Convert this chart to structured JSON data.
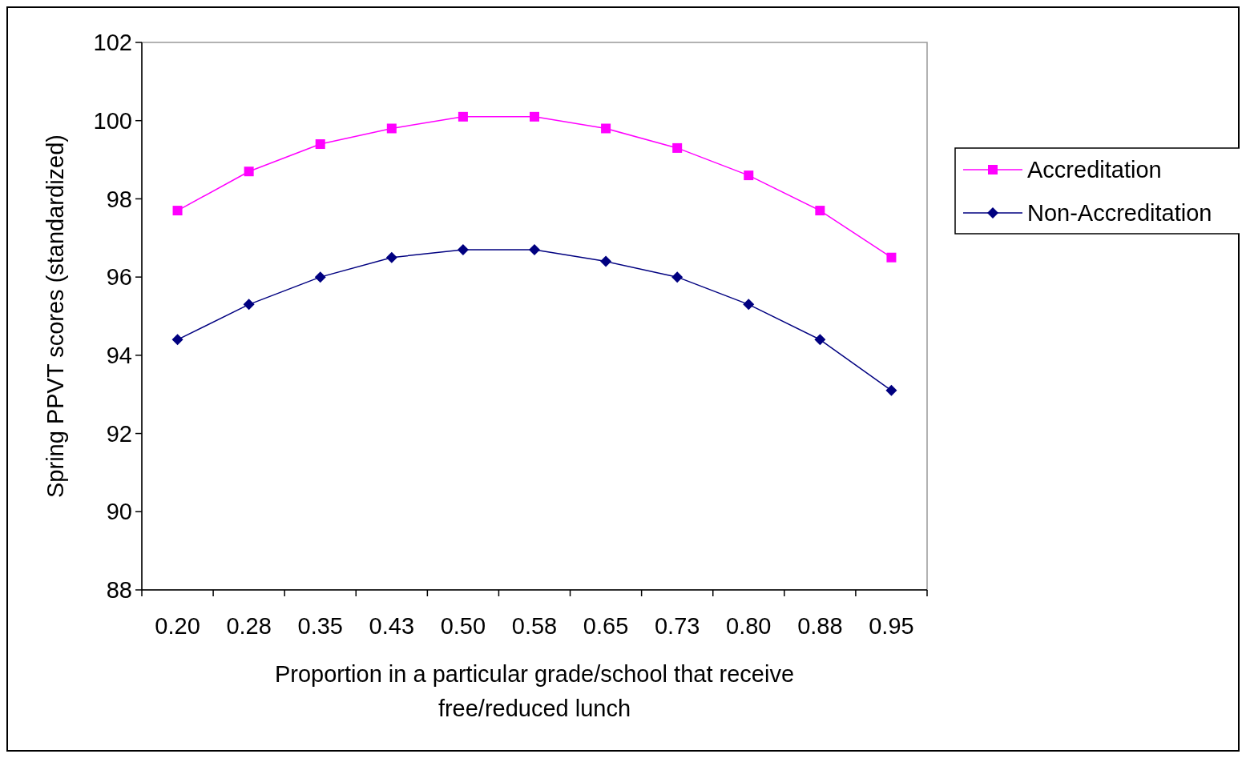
{
  "chart_data": {
    "type": "line",
    "xlabel": "Proportion in a particular grade/school that receive free/reduced lunch",
    "ylabel": "Spring PPVT scores (standardized)",
    "categories": [
      "0.20",
      "0.28",
      "0.35",
      "0.43",
      "0.50",
      "0.58",
      "0.65",
      "0.73",
      "0.80",
      "0.88",
      "0.95"
    ],
    "series": [
      {
        "name": "Accreditation",
        "color": "#ff00ff",
        "marker": "square",
        "values": [
          97.7,
          98.7,
          99.4,
          99.8,
          100.1,
          100.1,
          99.8,
          99.3,
          98.6,
          97.7,
          96.5
        ]
      },
      {
        "name": "Non-Accreditation",
        "color": "#000080",
        "marker": "diamond",
        "values": [
          94.4,
          95.3,
          96.0,
          96.5,
          96.7,
          96.7,
          96.4,
          96.0,
          95.3,
          94.4,
          93.1
        ]
      }
    ],
    "ylim": [
      88,
      102
    ],
    "yticks": [
      88,
      90,
      92,
      94,
      96,
      98,
      100,
      102
    ],
    "grid": false,
    "legend": "right"
  }
}
